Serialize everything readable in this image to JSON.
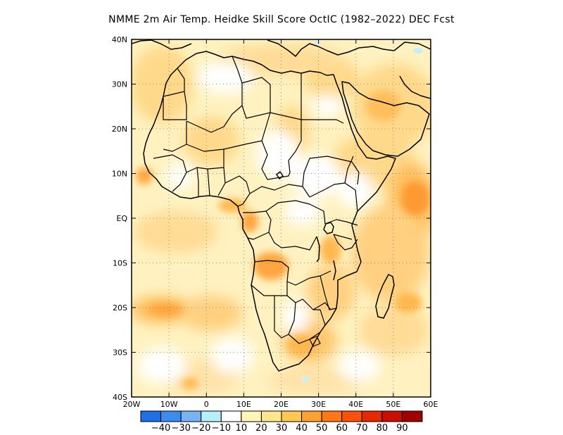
{
  "title": "NMME  2m Air Temp. Heidke Skill Score OctIC (1982–2022) DEC Fcst",
  "map": {
    "lon_range": [
      -20,
      60
    ],
    "lat_range": [
      -40,
      40
    ],
    "lat_ticks": [
      {
        "value": 40,
        "label": "40N"
      },
      {
        "value": 30,
        "label": "30N"
      },
      {
        "value": 20,
        "label": "20N"
      },
      {
        "value": 10,
        "label": "10N"
      },
      {
        "value": 0,
        "label": "EQ"
      },
      {
        "value": -10,
        "label": "10S"
      },
      {
        "value": -20,
        "label": "20S"
      },
      {
        "value": -30,
        "label": "30S"
      },
      {
        "value": -40,
        "label": "40S"
      }
    ],
    "lon_ticks": [
      {
        "value": -20,
        "label": "20W"
      },
      {
        "value": -10,
        "label": "10W"
      },
      {
        "value": 0,
        "label": "0"
      },
      {
        "value": 10,
        "label": "10E"
      },
      {
        "value": 20,
        "label": "20E"
      },
      {
        "value": 30,
        "label": "30E"
      },
      {
        "value": 40,
        "label": "40E"
      },
      {
        "value": 50,
        "label": "50E"
      },
      {
        "value": 60,
        "label": "60E"
      }
    ],
    "grid": "dotted"
  },
  "colorbar": {
    "colors": [
      "#1e6ee6",
      "#3c8cf0",
      "#78b4f5",
      "#b4f0fa",
      "#ffffff",
      "#fff5b4",
      "#ffe68c",
      "#ffc850",
      "#ffa032",
      "#ff7814",
      "#ff500a",
      "#e62800",
      "#c80f00",
      "#a00000"
    ],
    "labels": [
      "-40",
      "-30",
      "-20",
      "-10",
      "10",
      "20",
      "30",
      "40",
      "50",
      "60",
      "70",
      "80",
      "90"
    ]
  }
}
